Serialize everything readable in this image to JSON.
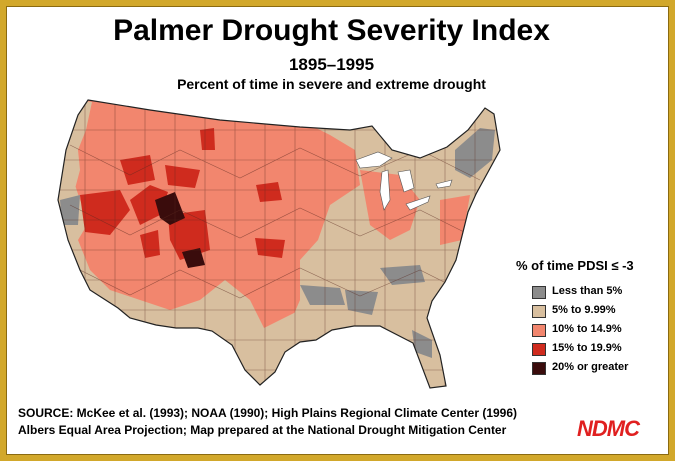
{
  "header": {
    "title": "Palmer Drought Severity Index",
    "years": "1895–1995",
    "description": "Percent of time in severe and extreme drought"
  },
  "legend": {
    "title": "% of time PDSI ≤ -3",
    "items": [
      {
        "label": "Less than 5%",
        "color": "#8c8c8c"
      },
      {
        "label": "5% to 9.99%",
        "color": "#d8bf9f"
      },
      {
        "label": "10% to 14.9%",
        "color": "#f2866e"
      },
      {
        "label": "15% to 19.9%",
        "color": "#cf2b1e"
      },
      {
        "label": "20% or greater",
        "color": "#3a0c0c"
      }
    ]
  },
  "footer": {
    "source": "SOURCE: McKee et al. (1993); NOAA (1990); High Plains Regional Climate Center (1996)",
    "projection": "Albers Equal Area Projection; Map prepared at the National Drought Mitigation Center",
    "logo": "NDMC"
  }
}
